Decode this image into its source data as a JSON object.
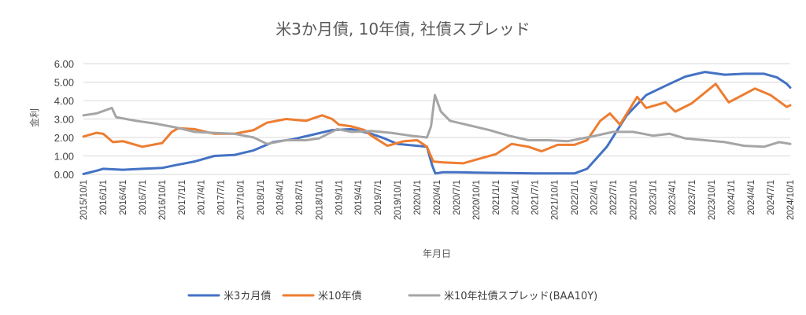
{
  "chart_data": {
    "type": "line",
    "title": "米3か月債, 10年債, 社債スプレッド",
    "xlabel": "年月日",
    "ylabel": "金利",
    "ylim": [
      0,
      6
    ],
    "yticks": [
      "0.00",
      "1.00",
      "2.00",
      "3.00",
      "4.00",
      "5.00",
      "6.00"
    ],
    "x_range": [
      "2015-10-01",
      "2024-10-01"
    ],
    "x_ticks": [
      "2015/10/1",
      "2016/1/1",
      "2016/4/1",
      "2016/7/1",
      "2016/10/1",
      "2017/1/1",
      "2017/4/1",
      "2017/7/1",
      "2017/10/1",
      "2018/1/1",
      "2018/4/1",
      "2018/7/1",
      "2018/10/1",
      "2019/1/1",
      "2019/4/1",
      "2019/7/1",
      "2019/10/1",
      "2020/1/1",
      "2020/4/1",
      "2020/7/1",
      "2020/10/1",
      "2021/1/1",
      "2021/4/1",
      "2021/7/1",
      "2021/10/1",
      "2022/1/1",
      "2022/4/1",
      "2022/7/1",
      "2022/10/1",
      "2023/1/1",
      "2023/4/1",
      "2023/7/1",
      "2023/10/1",
      "2024/1/1",
      "2024/4/1",
      "2024/7/1",
      "2024/10/1"
    ],
    "grid": true,
    "legend_position": "bottom",
    "series": [
      {
        "name": "米3カ月債",
        "color": "#4472C4",
        "points": [
          [
            "2015-10-01",
            0.02
          ],
          [
            "2015-12-01",
            0.2
          ],
          [
            "2016-01-01",
            0.3
          ],
          [
            "2016-04-01",
            0.25
          ],
          [
            "2016-07-01",
            0.3
          ],
          [
            "2016-10-01",
            0.35
          ],
          [
            "2016-12-01",
            0.5
          ],
          [
            "2017-03-01",
            0.7
          ],
          [
            "2017-06-01",
            1.0
          ],
          [
            "2017-09-01",
            1.05
          ],
          [
            "2017-12-01",
            1.3
          ],
          [
            "2018-03-01",
            1.75
          ],
          [
            "2018-06-01",
            1.9
          ],
          [
            "2018-09-01",
            2.15
          ],
          [
            "2018-12-01",
            2.4
          ],
          [
            "2019-03-01",
            2.45
          ],
          [
            "2019-06-01",
            2.2
          ],
          [
            "2019-08-01",
            1.95
          ],
          [
            "2019-10-01",
            1.65
          ],
          [
            "2020-01-01",
            1.55
          ],
          [
            "2020-02-15",
            1.5
          ],
          [
            "2020-03-10",
            0.5
          ],
          [
            "2020-03-25",
            0.05
          ],
          [
            "2020-05-01",
            0.12
          ],
          [
            "2020-07-01",
            0.12
          ],
          [
            "2020-10-01",
            0.1
          ],
          [
            "2021-01-01",
            0.08
          ],
          [
            "2021-07-01",
            0.05
          ],
          [
            "2022-01-01",
            0.05
          ],
          [
            "2022-03-01",
            0.3
          ],
          [
            "2022-06-01",
            1.5
          ],
          [
            "2022-09-01",
            3.2
          ],
          [
            "2022-12-01",
            4.3
          ],
          [
            "2023-03-01",
            4.8
          ],
          [
            "2023-06-01",
            5.3
          ],
          [
            "2023-09-01",
            5.55
          ],
          [
            "2023-12-01",
            5.4
          ],
          [
            "2024-03-01",
            5.45
          ],
          [
            "2024-06-01",
            5.45
          ],
          [
            "2024-08-01",
            5.25
          ],
          [
            "2024-09-15",
            4.9
          ],
          [
            "2024-10-01",
            4.7
          ]
        ]
      },
      {
        "name": "米10年債",
        "color": "#ED7D31",
        "points": [
          [
            "2015-10-01",
            2.05
          ],
          [
            "2015-12-01",
            2.25
          ],
          [
            "2016-01-01",
            2.2
          ],
          [
            "2016-02-15",
            1.75
          ],
          [
            "2016-04-01",
            1.8
          ],
          [
            "2016-07-01",
            1.5
          ],
          [
            "2016-10-01",
            1.7
          ],
          [
            "2016-11-15",
            2.3
          ],
          [
            "2016-12-15",
            2.5
          ],
          [
            "2017-03-01",
            2.45
          ],
          [
            "2017-06-01",
            2.2
          ],
          [
            "2017-09-01",
            2.2
          ],
          [
            "2017-12-01",
            2.4
          ],
          [
            "2018-02-01",
            2.8
          ],
          [
            "2018-05-01",
            3.0
          ],
          [
            "2018-08-01",
            2.9
          ],
          [
            "2018-10-15",
            3.2
          ],
          [
            "2018-12-01",
            3.0
          ],
          [
            "2019-01-01",
            2.7
          ],
          [
            "2019-03-01",
            2.6
          ],
          [
            "2019-05-01",
            2.4
          ],
          [
            "2019-06-01",
            2.1
          ],
          [
            "2019-08-15",
            1.55
          ],
          [
            "2019-11-01",
            1.8
          ],
          [
            "2020-01-01",
            1.85
          ],
          [
            "2020-02-15",
            1.5
          ],
          [
            "2020-03-15",
            0.7
          ],
          [
            "2020-05-01",
            0.65
          ],
          [
            "2020-08-01",
            0.6
          ],
          [
            "2020-10-01",
            0.8
          ],
          [
            "2021-01-01",
            1.1
          ],
          [
            "2021-03-15",
            1.65
          ],
          [
            "2021-06-01",
            1.5
          ],
          [
            "2021-08-01",
            1.25
          ],
          [
            "2021-10-15",
            1.6
          ],
          [
            "2022-01-01",
            1.6
          ],
          [
            "2022-03-01",
            1.85
          ],
          [
            "2022-05-01",
            2.9
          ],
          [
            "2022-06-15",
            3.3
          ],
          [
            "2022-08-01",
            2.7
          ],
          [
            "2022-10-20",
            4.2
          ],
          [
            "2022-12-01",
            3.6
          ],
          [
            "2023-03-01",
            3.9
          ],
          [
            "2023-04-15",
            3.4
          ],
          [
            "2023-07-01",
            3.85
          ],
          [
            "2023-10-20",
            4.9
          ],
          [
            "2023-12-20",
            3.9
          ],
          [
            "2024-04-20",
            4.65
          ],
          [
            "2024-07-01",
            4.3
          ],
          [
            "2024-09-15",
            3.65
          ],
          [
            "2024-10-01",
            3.75
          ]
        ]
      },
      {
        "name": "米10年社債スプレッド(BAA10Y)",
        "color": "#A5A5A5",
        "points": [
          [
            "2015-10-01",
            3.2
          ],
          [
            "2015-12-01",
            3.3
          ],
          [
            "2016-02-10",
            3.6
          ],
          [
            "2016-03-01",
            3.1
          ],
          [
            "2016-06-01",
            2.9
          ],
          [
            "2016-09-01",
            2.75
          ],
          [
            "2016-12-01",
            2.55
          ],
          [
            "2017-03-01",
            2.3
          ],
          [
            "2017-06-01",
            2.25
          ],
          [
            "2017-09-01",
            2.2
          ],
          [
            "2017-12-01",
            2.0
          ],
          [
            "2018-02-01",
            1.65
          ],
          [
            "2018-05-01",
            1.85
          ],
          [
            "2018-08-01",
            1.85
          ],
          [
            "2018-10-01",
            1.95
          ],
          [
            "2018-12-25",
            2.45
          ],
          [
            "2019-03-01",
            2.3
          ],
          [
            "2019-06-01",
            2.35
          ],
          [
            "2019-09-01",
            2.25
          ],
          [
            "2019-12-01",
            2.1
          ],
          [
            "2020-02-15",
            2.0
          ],
          [
            "2020-03-05",
            2.6
          ],
          [
            "2020-03-23",
            4.3
          ],
          [
            "2020-04-20",
            3.4
          ],
          [
            "2020-06-01",
            2.9
          ],
          [
            "2020-09-01",
            2.65
          ],
          [
            "2020-12-01",
            2.4
          ],
          [
            "2021-03-01",
            2.1
          ],
          [
            "2021-06-01",
            1.85
          ],
          [
            "2021-09-01",
            1.85
          ],
          [
            "2021-12-01",
            1.8
          ],
          [
            "2022-03-01",
            2.0
          ],
          [
            "2022-07-01",
            2.3
          ],
          [
            "2022-10-01",
            2.3
          ],
          [
            "2023-01-01",
            2.1
          ],
          [
            "2023-03-20",
            2.2
          ],
          [
            "2023-06-01",
            1.95
          ],
          [
            "2023-09-01",
            1.85
          ],
          [
            "2023-12-01",
            1.75
          ],
          [
            "2024-03-01",
            1.55
          ],
          [
            "2024-06-01",
            1.5
          ],
          [
            "2024-08-10",
            1.75
          ],
          [
            "2024-10-01",
            1.65
          ]
        ]
      }
    ]
  }
}
